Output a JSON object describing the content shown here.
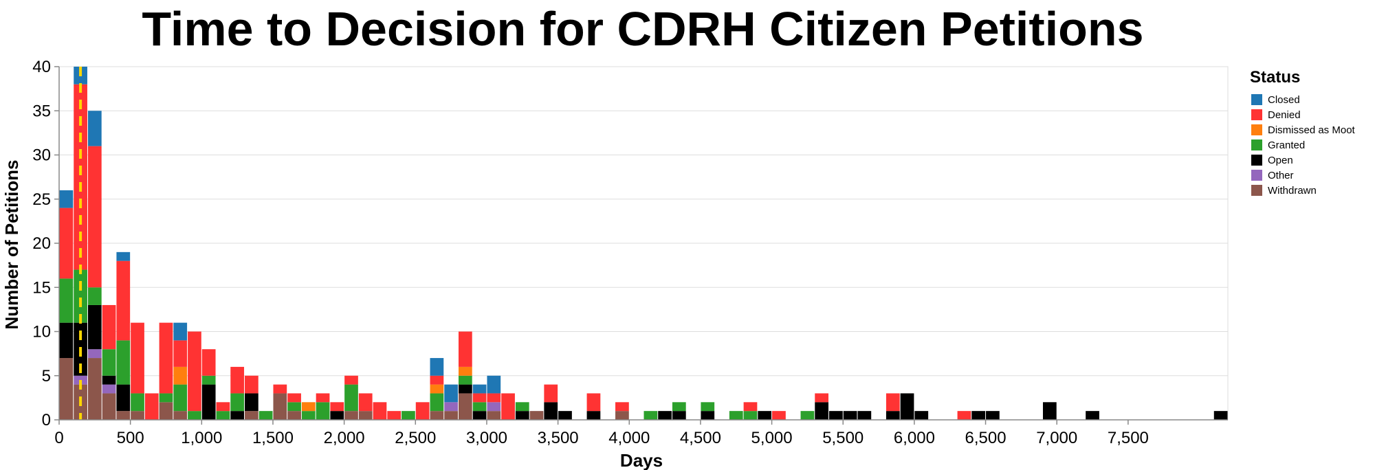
{
  "chart_data": {
    "type": "bar",
    "title": "Time to Decision for CDRH Citizen Petitions",
    "xlabel": "Days",
    "ylabel": "Number of Petitions",
    "xlim": [
      0,
      8200
    ],
    "ylim": [
      0,
      40
    ],
    "bin_width": 100,
    "x_ticks": [
      0,
      500,
      1000,
      1500,
      2000,
      2500,
      3000,
      3500,
      4000,
      4500,
      5000,
      5500,
      6000,
      6500,
      7000,
      7500
    ],
    "x_tick_labels": [
      "0",
      "500",
      "1,000",
      "1,500",
      "2,000",
      "2,500",
      "3,000",
      "3,500",
      "4,000",
      "4,500",
      "5,000",
      "5,500",
      "6,000",
      "6,500",
      "7,000",
      "7,500"
    ],
    "y_ticks": [
      0,
      5,
      10,
      15,
      20,
      25,
      30,
      35,
      40
    ],
    "grid": true,
    "legend_title": "Status",
    "legend_position": "right",
    "reference_line": {
      "x": 150,
      "style": "dashed",
      "color": "#ffd700"
    },
    "series": [
      {
        "name": "Withdrawn",
        "color": "#8c564b"
      },
      {
        "name": "Other",
        "color": "#9467bd"
      },
      {
        "name": "Open",
        "color": "#000000"
      },
      {
        "name": "Granted",
        "color": "#2ca02c"
      },
      {
        "name": "Dismissed as Moot",
        "color": "#ff7f0e"
      },
      {
        "name": "Denied",
        "color": "#ff3333"
      },
      {
        "name": "Closed",
        "color": "#1f77b4"
      }
    ],
    "legend_order": [
      "Closed",
      "Denied",
      "Dismissed as Moot",
      "Granted",
      "Open",
      "Other",
      "Withdrawn"
    ],
    "bins": [
      {
        "x": 0,
        "Withdrawn": 7,
        "Open": 4,
        "Granted": 5,
        "Denied": 8,
        "Closed": 2
      },
      {
        "x": 100,
        "Withdrawn": 4,
        "Other": 1,
        "Open": 6,
        "Granted": 6,
        "Denied": 21,
        "Closed": 2
      },
      {
        "x": 200,
        "Withdrawn": 7,
        "Other": 1,
        "Open": 5,
        "Granted": 2,
        "Denied": 16,
        "Closed": 4
      },
      {
        "x": 300,
        "Withdrawn": 3,
        "Other": 1,
        "Open": 1,
        "Granted": 3,
        "Denied": 5
      },
      {
        "x": 400,
        "Withdrawn": 1,
        "Open": 3,
        "Granted": 5,
        "Denied": 9,
        "Closed": 1
      },
      {
        "x": 500,
        "Withdrawn": 1,
        "Granted": 2,
        "Denied": 8
      },
      {
        "x": 600,
        "Denied": 3
      },
      {
        "x": 700,
        "Withdrawn": 2,
        "Granted": 1,
        "Denied": 8
      },
      {
        "x": 800,
        "Withdrawn": 1,
        "Granted": 3,
        "Dismissed as Moot": 2,
        "Denied": 3,
        "Closed": 2
      },
      {
        "x": 900,
        "Granted": 1,
        "Denied": 9
      },
      {
        "x": 1000,
        "Open": 4,
        "Granted": 1,
        "Denied": 3
      },
      {
        "x": 1100,
        "Granted": 1,
        "Denied": 1
      },
      {
        "x": 1200,
        "Open": 1,
        "Granted": 2,
        "Denied": 3
      },
      {
        "x": 1300,
        "Withdrawn": 1,
        "Open": 2,
        "Denied": 2
      },
      {
        "x": 1400,
        "Granted": 1
      },
      {
        "x": 1500,
        "Withdrawn": 3,
        "Denied": 1
      },
      {
        "x": 1600,
        "Withdrawn": 1,
        "Granted": 1,
        "Denied": 1
      },
      {
        "x": 1700,
        "Granted": 1,
        "Dismissed as Moot": 1
      },
      {
        "x": 1800,
        "Granted": 2,
        "Denied": 1
      },
      {
        "x": 1900,
        "Open": 1,
        "Denied": 1
      },
      {
        "x": 2000,
        "Withdrawn": 1,
        "Granted": 3,
        "Denied": 1
      },
      {
        "x": 2100,
        "Withdrawn": 1,
        "Denied": 2
      },
      {
        "x": 2200,
        "Denied": 2
      },
      {
        "x": 2300,
        "Denied": 1
      },
      {
        "x": 2400,
        "Granted": 1
      },
      {
        "x": 2500,
        "Denied": 2
      },
      {
        "x": 2600,
        "Withdrawn": 1,
        "Granted": 2,
        "Dismissed as Moot": 1,
        "Denied": 1,
        "Closed": 2
      },
      {
        "x": 2700,
        "Withdrawn": 1,
        "Other": 1,
        "Closed": 2
      },
      {
        "x": 2800,
        "Withdrawn": 3,
        "Open": 1,
        "Granted": 1,
        "Dismissed as Moot": 1,
        "Denied": 4
      },
      {
        "x": 2900,
        "Open": 1,
        "Granted": 1,
        "Denied": 1,
        "Closed": 1
      },
      {
        "x": 3000,
        "Withdrawn": 1,
        "Other": 1,
        "Denied": 1,
        "Closed": 2
      },
      {
        "x": 3100,
        "Denied": 3
      },
      {
        "x": 3200,
        "Open": 1,
        "Granted": 1
      },
      {
        "x": 3300,
        "Withdrawn": 1
      },
      {
        "x": 3400,
        "Open": 2,
        "Denied": 2
      },
      {
        "x": 3500,
        "Open": 1
      },
      {
        "x": 3700,
        "Open": 1,
        "Denied": 2
      },
      {
        "x": 3900,
        "Withdrawn": 1,
        "Denied": 1
      },
      {
        "x": 4100,
        "Granted": 1
      },
      {
        "x": 4200,
        "Open": 1
      },
      {
        "x": 4300,
        "Open": 1,
        "Granted": 1
      },
      {
        "x": 4500,
        "Open": 1,
        "Granted": 1
      },
      {
        "x": 4700,
        "Granted": 1
      },
      {
        "x": 4800,
        "Granted": 1,
        "Denied": 1
      },
      {
        "x": 4900,
        "Open": 1
      },
      {
        "x": 5000,
        "Denied": 1
      },
      {
        "x": 5200,
        "Granted": 1
      },
      {
        "x": 5300,
        "Open": 2,
        "Denied": 1
      },
      {
        "x": 5400,
        "Open": 1
      },
      {
        "x": 5500,
        "Open": 1
      },
      {
        "x": 5600,
        "Open": 1
      },
      {
        "x": 5800,
        "Open": 1,
        "Denied": 2
      },
      {
        "x": 5900,
        "Open": 3
      },
      {
        "x": 6000,
        "Open": 1
      },
      {
        "x": 6300,
        "Denied": 1
      },
      {
        "x": 6400,
        "Open": 1
      },
      {
        "x": 6500,
        "Open": 1
      },
      {
        "x": 6900,
        "Open": 2
      },
      {
        "x": 7200,
        "Open": 1
      },
      {
        "x": 8100,
        "Open": 1
      }
    ]
  }
}
